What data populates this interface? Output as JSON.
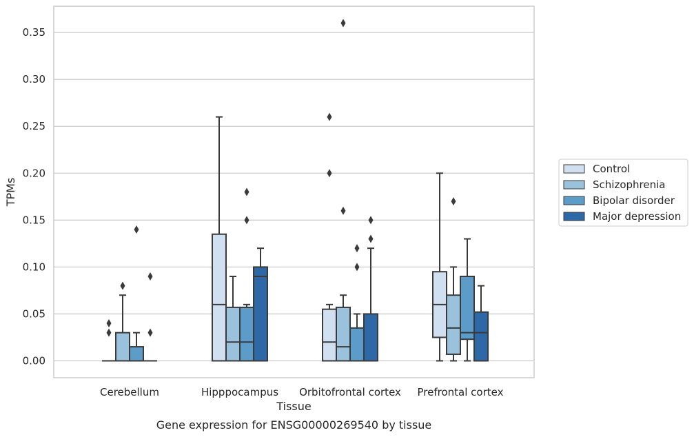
{
  "chart_data": {
    "type": "box",
    "title": "Gene expression for ENSG00000269540 by tissue",
    "xlabel": "Tissue",
    "ylabel": "TPMs",
    "ylim": [
      -0.018,
      0.378
    ],
    "yticks": [
      "0.00",
      "0.05",
      "0.10",
      "0.15",
      "0.20",
      "0.25",
      "0.30",
      "0.35"
    ],
    "grid": "horizontal",
    "legend_position": "right",
    "categories": [
      "Cerebellum",
      "Hipppocampus",
      "Orbitofrontal cortex",
      "Prefrontal cortex"
    ],
    "series": [
      {
        "name": "Control",
        "color": "#d1e0f0",
        "boxes": [
          {
            "q1": 0,
            "median": 0,
            "q3": 0,
            "whislo": 0,
            "whishi": 0,
            "fliers": [
              0.03,
              0.04
            ]
          },
          {
            "q1": 0,
            "median": 0.06,
            "q3": 0.135,
            "whislo": 0,
            "whishi": 0.26,
            "fliers": []
          },
          {
            "q1": 0,
            "median": 0.02,
            "q3": 0.055,
            "whislo": 0,
            "whishi": 0.06,
            "fliers": [
              0.2,
              0.26
            ]
          },
          {
            "q1": 0.025,
            "median": 0.06,
            "q3": 0.095,
            "whislo": 0,
            "whishi": 0.2,
            "fliers": []
          }
        ]
      },
      {
        "name": "Schizophrenia",
        "color": "#9ac2dc",
        "boxes": [
          {
            "q1": 0,
            "median": 0,
            "q3": 0.03,
            "whislo": 0,
            "whishi": 0.07,
            "fliers": [
              0.08
            ]
          },
          {
            "q1": 0,
            "median": 0.02,
            "q3": 0.057,
            "whislo": 0,
            "whishi": 0.09,
            "fliers": []
          },
          {
            "q1": 0,
            "median": 0.015,
            "q3": 0.057,
            "whislo": 0,
            "whishi": 0.07,
            "fliers": [
              0.16,
              0.36
            ]
          },
          {
            "q1": 0.007,
            "median": 0.035,
            "q3": 0.07,
            "whislo": 0,
            "whishi": 0.1,
            "fliers": [
              0.17
            ]
          }
        ]
      },
      {
        "name": "Bipolar disorder",
        "color": "#5b9cc8",
        "boxes": [
          {
            "q1": 0,
            "median": 0,
            "q3": 0.015,
            "whislo": 0,
            "whishi": 0.03,
            "fliers": [
              0.14
            ]
          },
          {
            "q1": 0,
            "median": 0.02,
            "q3": 0.057,
            "whislo": 0,
            "whishi": 0.06,
            "fliers": [
              0.15,
              0.18
            ]
          },
          {
            "q1": 0,
            "median": 0,
            "q3": 0.035,
            "whislo": 0,
            "whishi": 0.05,
            "fliers": [
              0.1,
              0.12
            ]
          },
          {
            "q1": 0.023,
            "median": 0.03,
            "q3": 0.09,
            "whislo": 0,
            "whishi": 0.13,
            "fliers": []
          }
        ]
      },
      {
        "name": "Major depression",
        "color": "#2d69a6",
        "boxes": [
          {
            "q1": 0,
            "median": 0,
            "q3": 0,
            "whislo": 0,
            "whishi": 0,
            "fliers": [
              0.03,
              0.09
            ]
          },
          {
            "q1": 0,
            "median": 0.09,
            "q3": 0.1,
            "whislo": 0,
            "whishi": 0.12,
            "fliers": []
          },
          {
            "q1": 0,
            "median": 0,
            "q3": 0.05,
            "whislo": 0,
            "whishi": 0.12,
            "fliers": [
              0.13,
              0.15
            ]
          },
          {
            "q1": 0,
            "median": 0.03,
            "q3": 0.052,
            "whislo": 0,
            "whishi": 0.08,
            "fliers": []
          }
        ]
      }
    ]
  }
}
